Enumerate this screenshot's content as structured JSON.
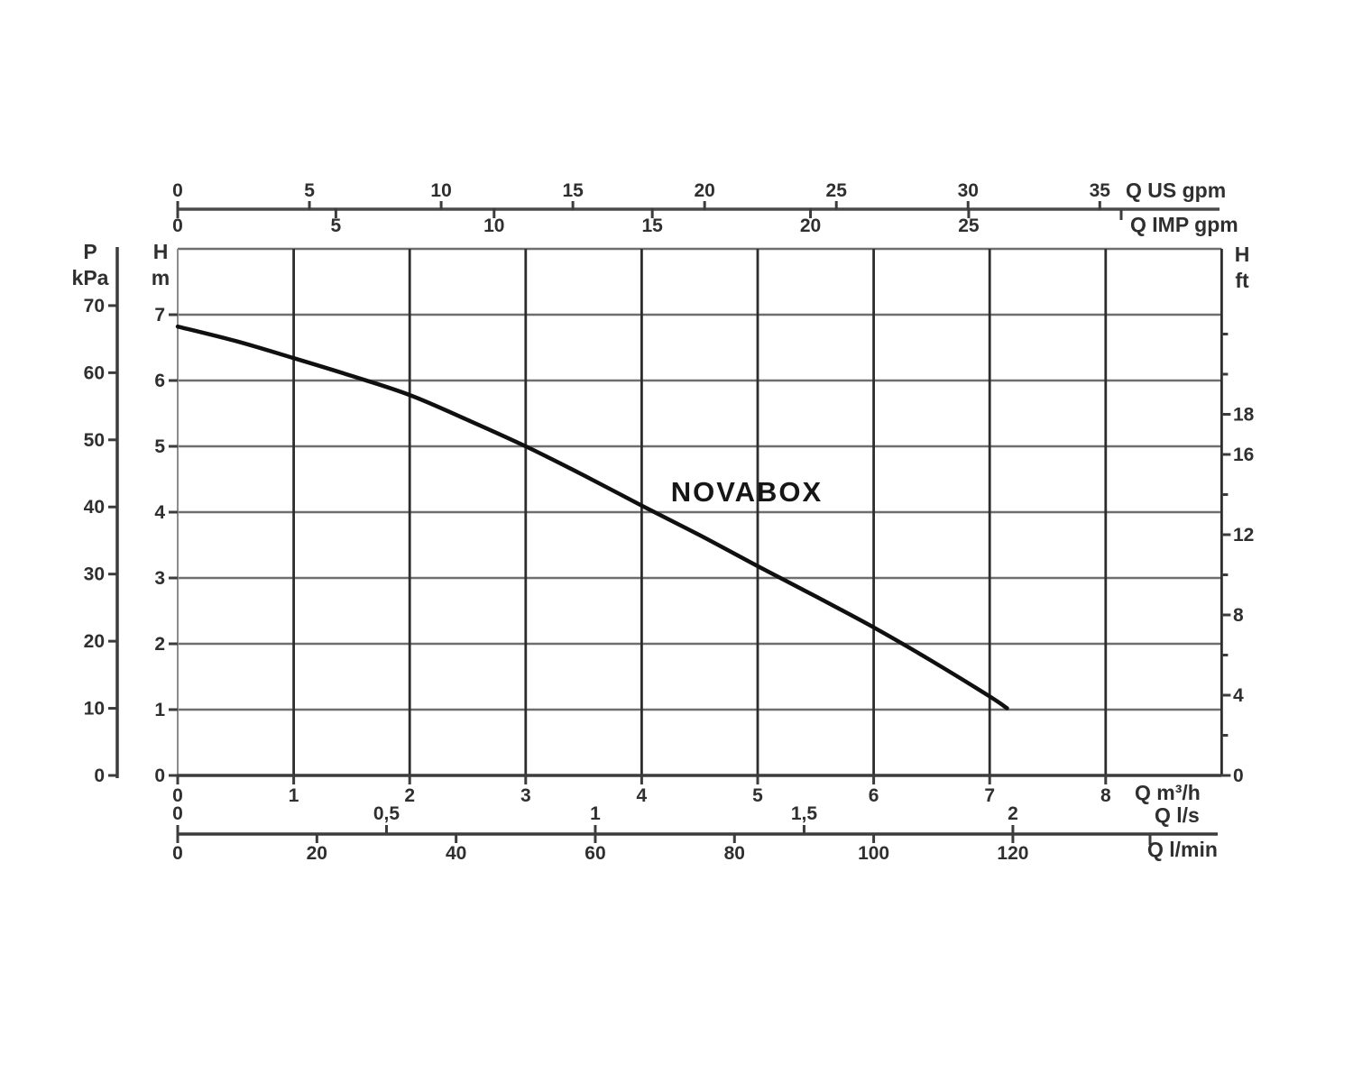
{
  "chart_data": {
    "type": "line",
    "title": "NOVABOX",
    "description": "Pump performance curve: head (H) versus flow rate (Q)",
    "grid": true,
    "xlim_m3h": [
      0,
      9
    ],
    "ylim_m": [
      0,
      8
    ],
    "series": [
      {
        "name": "NOVABOX",
        "x_unit": "m3/h",
        "y_unit": "m",
        "points": [
          [
            0,
            6.82
          ],
          [
            0.5,
            6.6
          ],
          [
            1,
            6.34
          ],
          [
            1.5,
            6.07
          ],
          [
            2,
            5.78
          ],
          [
            2.5,
            5.4
          ],
          [
            3,
            5.0
          ],
          [
            3.5,
            4.56
          ],
          [
            4,
            4.1
          ],
          [
            4.5,
            3.65
          ],
          [
            5,
            3.18
          ],
          [
            5.5,
            2.72
          ],
          [
            6,
            2.25
          ],
          [
            6.5,
            1.74
          ],
          [
            7,
            1.2
          ],
          [
            7.15,
            1.02
          ]
        ]
      }
    ],
    "axis_labels": {
      "us_gpm": "Q US gpm",
      "imp_gpm": "Q IMP gpm",
      "pressure": [
        "P",
        "kPa"
      ],
      "head_m": [
        "H",
        "m"
      ],
      "head_ft": [
        "H",
        "ft"
      ],
      "m3h": "Q m³/h",
      "ls": "Q l/s",
      "lmin": "Q l/min"
    },
    "ticks": {
      "us_gpm": [
        0,
        5,
        10,
        15,
        20,
        25,
        30,
        35
      ],
      "imp_gpm": [
        0,
        5,
        10,
        15,
        20,
        25
      ],
      "kpa": [
        0,
        10,
        20,
        30,
        40,
        50,
        60,
        70
      ],
      "m": [
        0,
        1,
        2,
        3,
        4,
        5,
        6,
        7
      ],
      "ft_labeled": [
        0,
        4,
        8,
        12,
        16,
        18
      ],
      "ft_minor": [
        2,
        6,
        10,
        14,
        20,
        22
      ],
      "m3h": [
        0,
        1,
        2,
        3,
        4,
        5,
        6,
        7,
        8
      ],
      "ls": [
        {
          "v": 0,
          "t": "0"
        },
        {
          "v": 0.5,
          "t": "0,5"
        },
        {
          "v": 1,
          "t": "1"
        },
        {
          "v": 1.5,
          "t": "1,5"
        },
        {
          "v": 2,
          "t": "2"
        }
      ],
      "lmin": [
        0,
        20,
        40,
        60,
        80,
        100,
        120
      ]
    },
    "colors": {
      "grid_horizontal": "#6e6e6e",
      "grid_vertical": "#2d2d2d",
      "grid_edge_light": "#8c8c8c",
      "axis": "#3c3c3c",
      "curve": "#101010",
      "text": "#2f2f2f"
    }
  }
}
